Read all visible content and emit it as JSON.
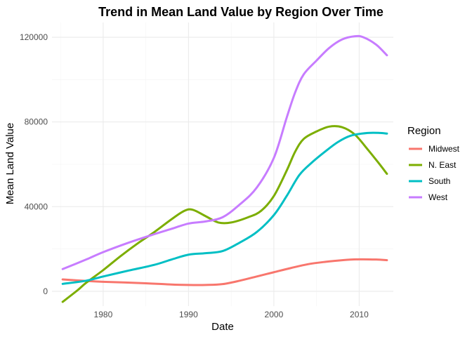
{
  "chart_data": {
    "type": "line",
    "title": "Trend in Mean Land Value by Region Over Time",
    "xlabel": "Date",
    "ylabel": "Mean Land Value",
    "xlim": [
      1974,
      2014
    ],
    "ylim": [
      -7000,
      127000
    ],
    "x_ticks": [
      1980,
      1990,
      2000,
      2010
    ],
    "y_ticks": [
      0,
      40000,
      80000,
      120000
    ],
    "x_tick_labels": [
      "1980",
      "1990",
      "2000",
      "2010"
    ],
    "y_tick_labels": [
      "0",
      "40000",
      "80000",
      "120000"
    ],
    "grid": true,
    "legend": {
      "title": "Region",
      "position": "right"
    },
    "series": [
      {
        "name": "Midwest",
        "color": "#F8766D",
        "points": [
          [
            1975.25,
            5600
          ],
          [
            1978,
            4900
          ],
          [
            1980,
            4500
          ],
          [
            1985,
            3800
          ],
          [
            1988,
            3200
          ],
          [
            1990,
            3000
          ],
          [
            1992,
            3000
          ],
          [
            1994,
            3400
          ],
          [
            1996,
            5000
          ],
          [
            1998,
            7000
          ],
          [
            2000,
            9000
          ],
          [
            2002,
            11000
          ],
          [
            2004,
            12800
          ],
          [
            2006,
            13900
          ],
          [
            2008,
            14700
          ],
          [
            2010,
            15100
          ],
          [
            2012,
            15000
          ],
          [
            2013.25,
            14700
          ]
        ]
      },
      {
        "name": "N. East",
        "color": "#7CAE00",
        "points": [
          [
            1975.25,
            -5000
          ],
          [
            1977,
            500
          ],
          [
            1978,
            4000
          ],
          [
            1980,
            10000
          ],
          [
            1982,
            16500
          ],
          [
            1984,
            22500
          ],
          [
            1986,
            28000
          ],
          [
            1988,
            34000
          ],
          [
            1989.5,
            38000
          ],
          [
            1990.5,
            38500
          ],
          [
            1992,
            35500
          ],
          [
            1993.5,
            32500
          ],
          [
            1995,
            32500
          ],
          [
            1997,
            35000
          ],
          [
            1998.5,
            38000
          ],
          [
            2000,
            45000
          ],
          [
            2001.5,
            57000
          ],
          [
            2002.5,
            66000
          ],
          [
            2003.5,
            72000
          ],
          [
            2005,
            75500
          ],
          [
            2006.5,
            77800
          ],
          [
            2008,
            77500
          ],
          [
            2009.5,
            74000
          ],
          [
            2011,
            67000
          ],
          [
            2012.2,
            61000
          ],
          [
            2013.25,
            55500
          ]
        ]
      },
      {
        "name": "South",
        "color": "#00BFC4",
        "points": [
          [
            1975.25,
            3500
          ],
          [
            1978,
            5000
          ],
          [
            1980,
            7000
          ],
          [
            1983,
            9800
          ],
          [
            1986,
            12500
          ],
          [
            1988,
            15000
          ],
          [
            1990,
            17300
          ],
          [
            1992,
            18000
          ],
          [
            1994,
            19000
          ],
          [
            1996,
            23000
          ],
          [
            1998,
            28000
          ],
          [
            2000,
            36000
          ],
          [
            2001.5,
            45000
          ],
          [
            2003,
            55000
          ],
          [
            2004.5,
            61000
          ],
          [
            2006,
            66000
          ],
          [
            2007.5,
            70500
          ],
          [
            2009,
            73500
          ],
          [
            2011,
            74800
          ],
          [
            2012.5,
            74800
          ],
          [
            2013.25,
            74500
          ]
        ]
      },
      {
        "name": "West",
        "color": "#C77CFF",
        "points": [
          [
            1975.25,
            10500
          ],
          [
            1978,
            15000
          ],
          [
            1980,
            18500
          ],
          [
            1983,
            23000
          ],
          [
            1986,
            27000
          ],
          [
            1988,
            29500
          ],
          [
            1990,
            32000
          ],
          [
            1992,
            33000
          ],
          [
            1994,
            35000
          ],
          [
            1996,
            41000
          ],
          [
            1998,
            49000
          ],
          [
            2000,
            63000
          ],
          [
            2001.5,
            82000
          ],
          [
            2002.5,
            94000
          ],
          [
            2003.5,
            102500
          ],
          [
            2005,
            109000
          ],
          [
            2006.5,
            115000
          ],
          [
            2008,
            119000
          ],
          [
            2009.5,
            120500
          ],
          [
            2010.5,
            120000
          ],
          [
            2012,
            116500
          ],
          [
            2013.25,
            111500
          ]
        ]
      }
    ]
  }
}
